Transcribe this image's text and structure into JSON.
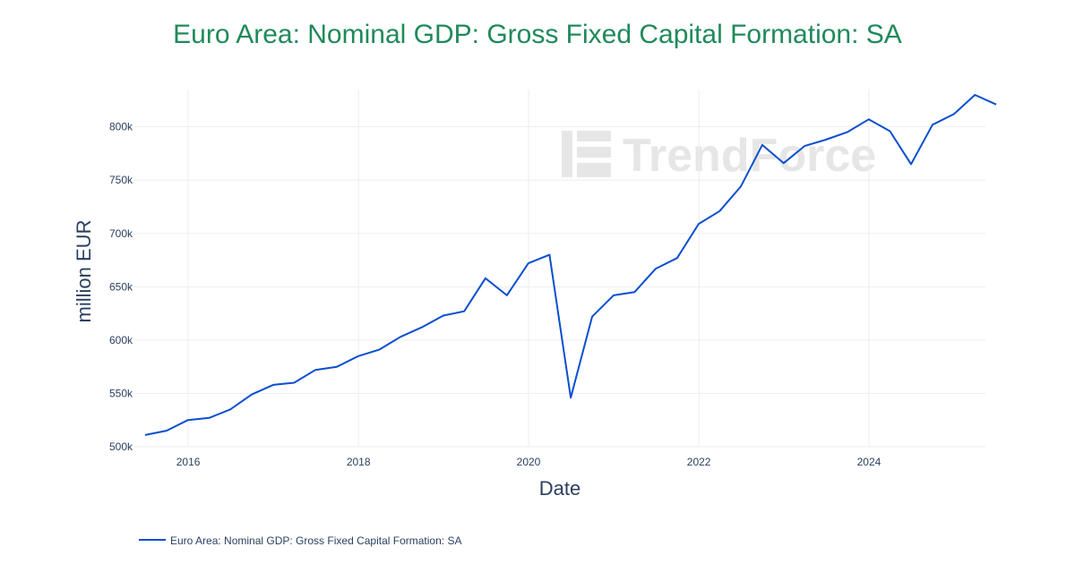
{
  "chart_data": {
    "type": "line",
    "title": "Euro Area: Nominal GDP: Gross Fixed Capital Formation: SA",
    "xlabel": "Date",
    "ylabel": "million EUR",
    "xlim": [
      "2015-05-15",
      "2025-05-15"
    ],
    "ylim": [
      500000,
      835000
    ],
    "x_ticks": [
      "2016",
      "2018",
      "2020",
      "2022",
      "2024"
    ],
    "y_ticks": [
      {
        "value": 500000,
        "label": "500k"
      },
      {
        "value": 550000,
        "label": "550k"
      },
      {
        "value": 600000,
        "label": "600k"
      },
      {
        "value": 650000,
        "label": "650k"
      },
      {
        "value": 700000,
        "label": "700k"
      },
      {
        "value": 750000,
        "label": "750k"
      },
      {
        "value": 800000,
        "label": "800k"
      }
    ],
    "grid": true,
    "legend_position": "bottom-left",
    "watermark": "TrendForce",
    "series": [
      {
        "name": "Euro Area: Nominal GDP: Gross Fixed Capital Formation: SA",
        "color": "#0a4fcf",
        "x": [
          "2015-06-30",
          "2015-09-30",
          "2015-12-31",
          "2016-03-31",
          "2016-06-30",
          "2016-09-30",
          "2016-12-31",
          "2017-03-31",
          "2017-06-30",
          "2017-09-30",
          "2017-12-31",
          "2018-03-31",
          "2018-06-30",
          "2018-09-30",
          "2018-12-31",
          "2019-03-31",
          "2019-06-30",
          "2019-09-30",
          "2019-12-31",
          "2020-03-31",
          "2020-06-30",
          "2020-09-30",
          "2020-12-31",
          "2021-03-31",
          "2021-06-30",
          "2021-09-30",
          "2021-12-31",
          "2022-03-31",
          "2022-06-30",
          "2022-09-30",
          "2022-12-31",
          "2023-03-31",
          "2023-06-30",
          "2023-09-30",
          "2023-12-31",
          "2024-03-31",
          "2024-06-30",
          "2024-09-30",
          "2024-12-31",
          "2025-03-31",
          "2025-06-30"
        ],
        "values": [
          511000,
          515000,
          525000,
          527000,
          535000,
          549000,
          558000,
          560000,
          572000,
          575000,
          585000,
          591000,
          603000,
          612000,
          623000,
          627000,
          658000,
          642000,
          672000,
          680000,
          546000,
          622000,
          642000,
          645000,
          667000,
          677000,
          709000,
          721000,
          744000,
          783000,
          766000,
          782000,
          788000,
          795000,
          807000,
          796000,
          765000,
          802000,
          812000,
          830000,
          821000
        ]
      }
    ]
  }
}
